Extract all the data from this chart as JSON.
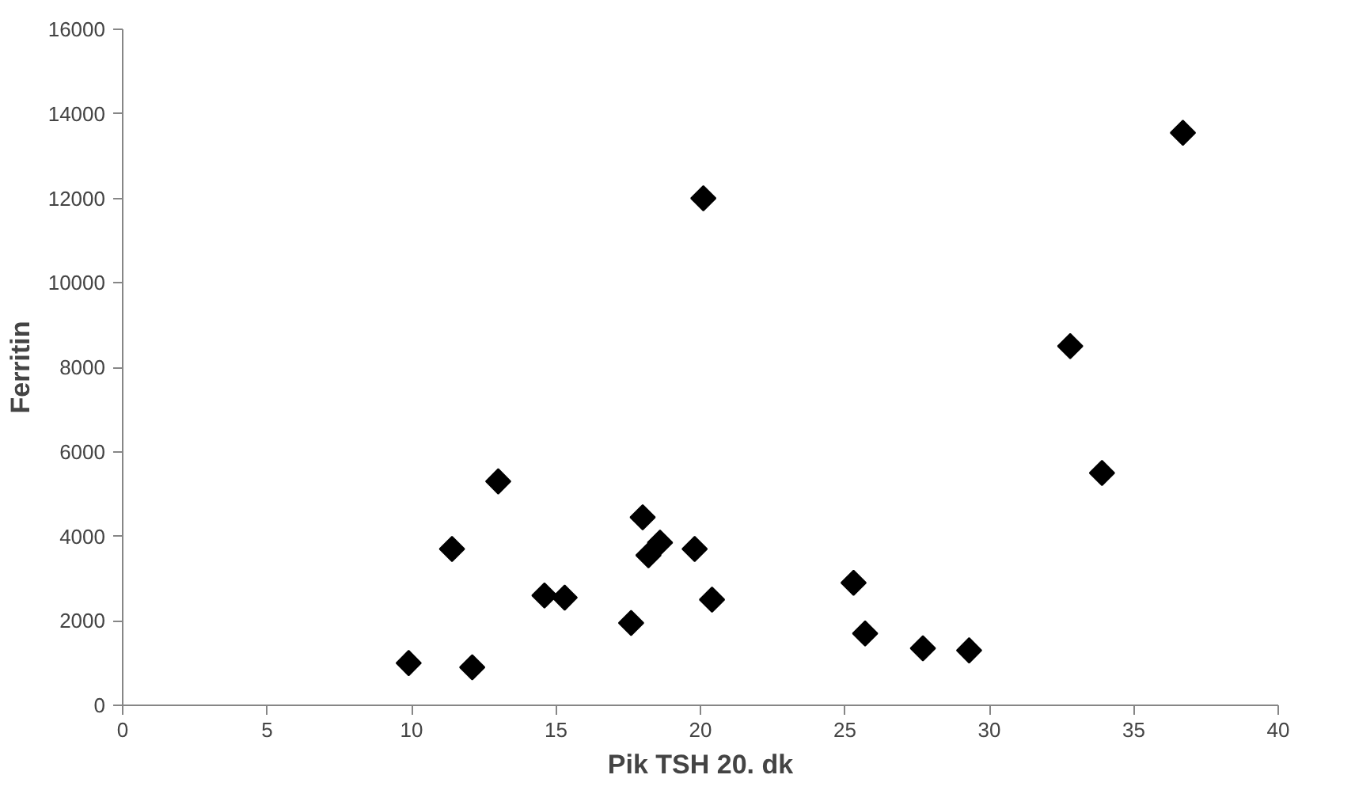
{
  "chart_data": {
    "type": "scatter",
    "xlabel": "Pik TSH 20. dk",
    "ylabel": "Ferritin",
    "x": [
      9.9,
      11.4,
      12.1,
      13.0,
      14.6,
      15.3,
      17.6,
      18.0,
      18.2,
      18.6,
      19.8,
      20.1,
      20.4,
      25.3,
      25.7,
      27.7,
      29.3,
      32.8,
      33.9,
      36.7
    ],
    "values": [
      1000,
      3700,
      900,
      5300,
      2600,
      2550,
      1950,
      4450,
      3550,
      3850,
      3700,
      12000,
      2500,
      2900,
      1700,
      1350,
      1300,
      8500,
      5500,
      13550
    ],
    "color": "#000000",
    "marker": "diamond",
    "grid": false,
    "xlim": [
      0,
      40
    ],
    "xticks": [
      0,
      5,
      10,
      15,
      20,
      25,
      30,
      35,
      40
    ],
    "ylim": [
      0,
      16000
    ],
    "yticks": [
      0,
      2000,
      4000,
      6000,
      8000,
      10000,
      12000,
      14000,
      16000
    ]
  }
}
